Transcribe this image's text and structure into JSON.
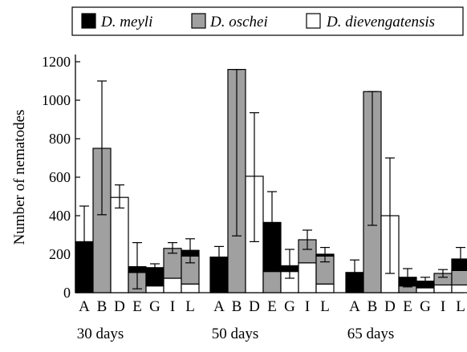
{
  "chart_data": {
    "type": "bar",
    "stacked": true,
    "ylabel": "Number of nematodes",
    "ylim": [
      0,
      1200
    ],
    "yticks": [
      0,
      200,
      400,
      600,
      800,
      1000,
      1200
    ],
    "ytick_labels": [
      "0",
      "200",
      "400",
      "600",
      "800",
      "1000",
      "1200"
    ],
    "legend": {
      "placement": "top",
      "entries": [
        {
          "name": "D. meyli",
          "color": "#000000"
        },
        {
          "name": "D. oschei",
          "color": "#a0a0a0"
        },
        {
          "name": "D. dievengatensis",
          "color": "#ffffff"
        }
      ]
    },
    "groups": [
      {
        "label": "30 days",
        "bars": [
          {
            "category": "A",
            "segments": {
              "D. meyli": 265,
              "D. oschei": 0,
              "D. dievengatensis": 0
            },
            "error": [
              115,
              450
            ]
          },
          {
            "category": "B",
            "segments": {
              "D. meyli": 0,
              "D. oschei": 750,
              "D. dievengatensis": 0
            },
            "error": [
              405,
              1100
            ]
          },
          {
            "category": "D",
            "segments": {
              "D. meyli": 0,
              "D. oschei": 0,
              "D. dievengatensis": 495
            },
            "error": [
              440,
              560
            ]
          },
          {
            "category": "E",
            "segments": {
              "D. meyli": 30,
              "D. oschei": 105,
              "D. dievengatensis": 0
            },
            "error": [
              20,
              260
            ]
          },
          {
            "category": "G",
            "segments": {
              "D. meyli": 95,
              "D. oschei": 0,
              "D. dievengatensis": 35
            },
            "error": [
              100,
              150
            ]
          },
          {
            "category": "I",
            "segments": {
              "D. meyli": 0,
              "D. oschei": 155,
              "D. dievengatensis": 75
            },
            "error": [
              205,
              260
            ]
          },
          {
            "category": "L",
            "segments": {
              "D. meyli": 30,
              "D. oschei": 145,
              "D. dievengatensis": 45
            },
            "error": [
              155,
              280
            ]
          }
        ]
      },
      {
        "label": "50 days",
        "bars": [
          {
            "category": "A",
            "segments": {
              "D. meyli": 185,
              "D. oschei": 0,
              "D. dievengatensis": 0
            },
            "error": [
              125,
              240
            ]
          },
          {
            "category": "B",
            "segments": {
              "D. meyli": 0,
              "D. oschei": 1160,
              "D. dievengatensis": 0
            },
            "error": [
              295,
              1160
            ]
          },
          {
            "category": "D",
            "segments": {
              "D. meyli": 0,
              "D. oschei": 0,
              "D. dievengatensis": 605
            },
            "error": [
              265,
              935
            ]
          },
          {
            "category": "E",
            "segments": {
              "D. meyli": 255,
              "D. oschei": 110,
              "D. dievengatensis": 0
            },
            "error": [
              205,
              525
            ]
          },
          {
            "category": "G",
            "segments": {
              "D. meyli": 30,
              "D. oschei": 0,
              "D. dievengatensis": 110
            },
            "error": [
              75,
              225
            ]
          },
          {
            "category": "I",
            "segments": {
              "D. meyli": 0,
              "D. oschei": 120,
              "D. dievengatensis": 155
            },
            "error": [
              225,
              325
            ]
          },
          {
            "category": "L",
            "segments": {
              "D. meyli": 10,
              "D. oschei": 145,
              "D. dievengatensis": 45
            },
            "error": [
              160,
              235
            ]
          }
        ]
      },
      {
        "label": "65 days",
        "bars": [
          {
            "category": "A",
            "segments": {
              "D. meyli": 105,
              "D. oschei": 0,
              "D. dievengatensis": 0
            },
            "error": [
              40,
              170
            ]
          },
          {
            "category": "B",
            "segments": {
              "D. meyli": 0,
              "D. oschei": 1045,
              "D. dievengatensis": 0
            },
            "error": [
              350,
              1045
            ]
          },
          {
            "category": "D",
            "segments": {
              "D. meyli": 0,
              "D. oschei": 0,
              "D. dievengatensis": 400
            },
            "error": [
              100,
              700
            ]
          },
          {
            "category": "E",
            "segments": {
              "D. meyli": 45,
              "D. oschei": 35,
              "D. dievengatensis": 0
            },
            "error": [
              30,
              125
            ]
          },
          {
            "category": "G",
            "segments": {
              "D. meyli": 35,
              "D. oschei": 0,
              "D. dievengatensis": 25
            },
            "error": [
              40,
              80
            ]
          },
          {
            "category": "I",
            "segments": {
              "D. meyli": 0,
              "D. oschei": 60,
              "D. dievengatensis": 40
            },
            "error": [
              80,
              120
            ]
          },
          {
            "category": "L",
            "segments": {
              "D. meyli": 60,
              "D. oschei": 75,
              "D. dievengatensis": 40
            },
            "error": [
              120,
              235
            ]
          }
        ]
      }
    ]
  }
}
